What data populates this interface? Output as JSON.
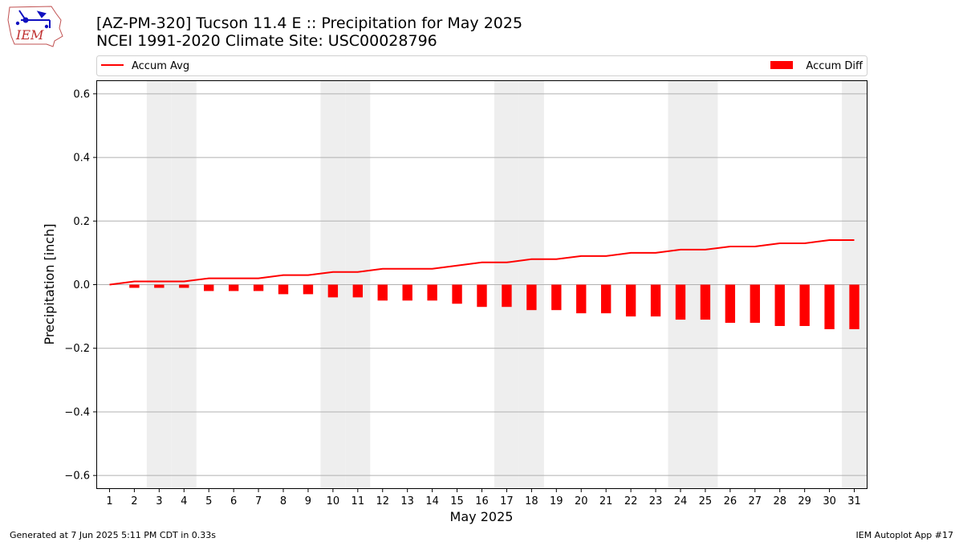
{
  "title_line1": "[AZ-PM-320] Tucson 11.4 E :: Precipitation for May 2025",
  "title_line2": "NCEI 1991-2020 Climate Site: USC00028796",
  "logo_text": "IEM",
  "footer_left": "Generated at 7 Jun 2025 5:11 PM CDT in 0.33s",
  "footer_right": "IEM Autoplot App #17",
  "colors": {
    "series": "#ff0000",
    "weekend_band": "#eeeeee",
    "grid": "#b0b0b0"
  },
  "chart_data": {
    "type": "bar",
    "xlabel": "May 2025",
    "ylabel": "Precipitation [inch]",
    "ylim": [
      -0.64,
      0.64
    ],
    "yticks": [
      0.6,
      0.4,
      0.2,
      0.0,
      -0.2,
      -0.4,
      -0.6
    ],
    "ytick_labels": [
      "0.6",
      "0.4",
      "0.2",
      "0.0",
      "−0.2",
      "−0.4",
      "−0.6"
    ],
    "x": [
      1,
      2,
      3,
      4,
      5,
      6,
      7,
      8,
      9,
      10,
      11,
      12,
      13,
      14,
      15,
      16,
      17,
      18,
      19,
      20,
      21,
      22,
      23,
      24,
      25,
      26,
      27,
      28,
      29,
      30,
      31
    ],
    "x_labels": [
      "1",
      "2",
      "3",
      "4",
      "5",
      "6",
      "7",
      "8",
      "9",
      "10",
      "11",
      "12",
      "13",
      "14",
      "15",
      "16",
      "17",
      "18",
      "19",
      "20",
      "21",
      "22",
      "23",
      "24",
      "25",
      "26",
      "27",
      "28",
      "29",
      "30",
      "31"
    ],
    "weekend_days": [
      3,
      4,
      10,
      11,
      17,
      18,
      24,
      25,
      31
    ],
    "grid": "horizontal",
    "legend": {
      "line_label": "Accum Avg",
      "bar_label": "Accum Diff",
      "placement": "top"
    },
    "series": [
      {
        "name": "Accum Avg",
        "kind": "line",
        "values": [
          0.0,
          0.01,
          0.01,
          0.01,
          0.02,
          0.02,
          0.02,
          0.03,
          0.03,
          0.04,
          0.04,
          0.05,
          0.05,
          0.05,
          0.06,
          0.07,
          0.07,
          0.08,
          0.08,
          0.09,
          0.09,
          0.1,
          0.1,
          0.11,
          0.11,
          0.12,
          0.12,
          0.13,
          0.13,
          0.14,
          0.14
        ]
      },
      {
        "name": "Accum Diff",
        "kind": "bar",
        "values": [
          0.0,
          -0.01,
          -0.01,
          -0.01,
          -0.02,
          -0.02,
          -0.02,
          -0.03,
          -0.03,
          -0.04,
          -0.04,
          -0.05,
          -0.05,
          -0.05,
          -0.06,
          -0.07,
          -0.07,
          -0.08,
          -0.08,
          -0.09,
          -0.09,
          -0.1,
          -0.1,
          -0.11,
          -0.11,
          -0.12,
          -0.12,
          -0.13,
          -0.13,
          -0.14,
          -0.14
        ]
      }
    ]
  }
}
